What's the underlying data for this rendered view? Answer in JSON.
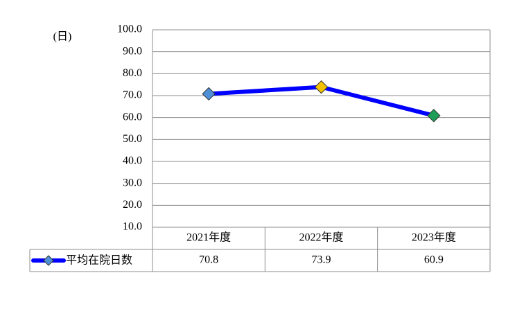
{
  "chart_data": {
    "type": "line",
    "y_axis_label": "(日)",
    "categories": [
      "2021年度",
      "2022年度",
      "2023年度"
    ],
    "series": [
      {
        "name": "平均在院日数",
        "color": "#0000ff",
        "values": [
          70.8,
          73.9,
          60.9
        ],
        "marker_colors": [
          "#4f8fd6",
          "#f2c200",
          "#1f9e5a"
        ]
      }
    ],
    "ylim": [
      10,
      100
    ],
    "yticks": [
      {
        "value": 10,
        "label": "10.0"
      },
      {
        "value": 20,
        "label": "20.0"
      },
      {
        "value": 30,
        "label": "30.0"
      },
      {
        "value": 40,
        "label": "40.0"
      },
      {
        "value": 50,
        "label": "50.0"
      },
      {
        "value": 60,
        "label": "60.0"
      },
      {
        "value": 70,
        "label": "70.0"
      },
      {
        "value": 80,
        "label": "80.0"
      },
      {
        "value": 90,
        "label": "90.0"
      },
      {
        "value": 100,
        "label": "100.0"
      }
    ],
    "grid": true
  }
}
